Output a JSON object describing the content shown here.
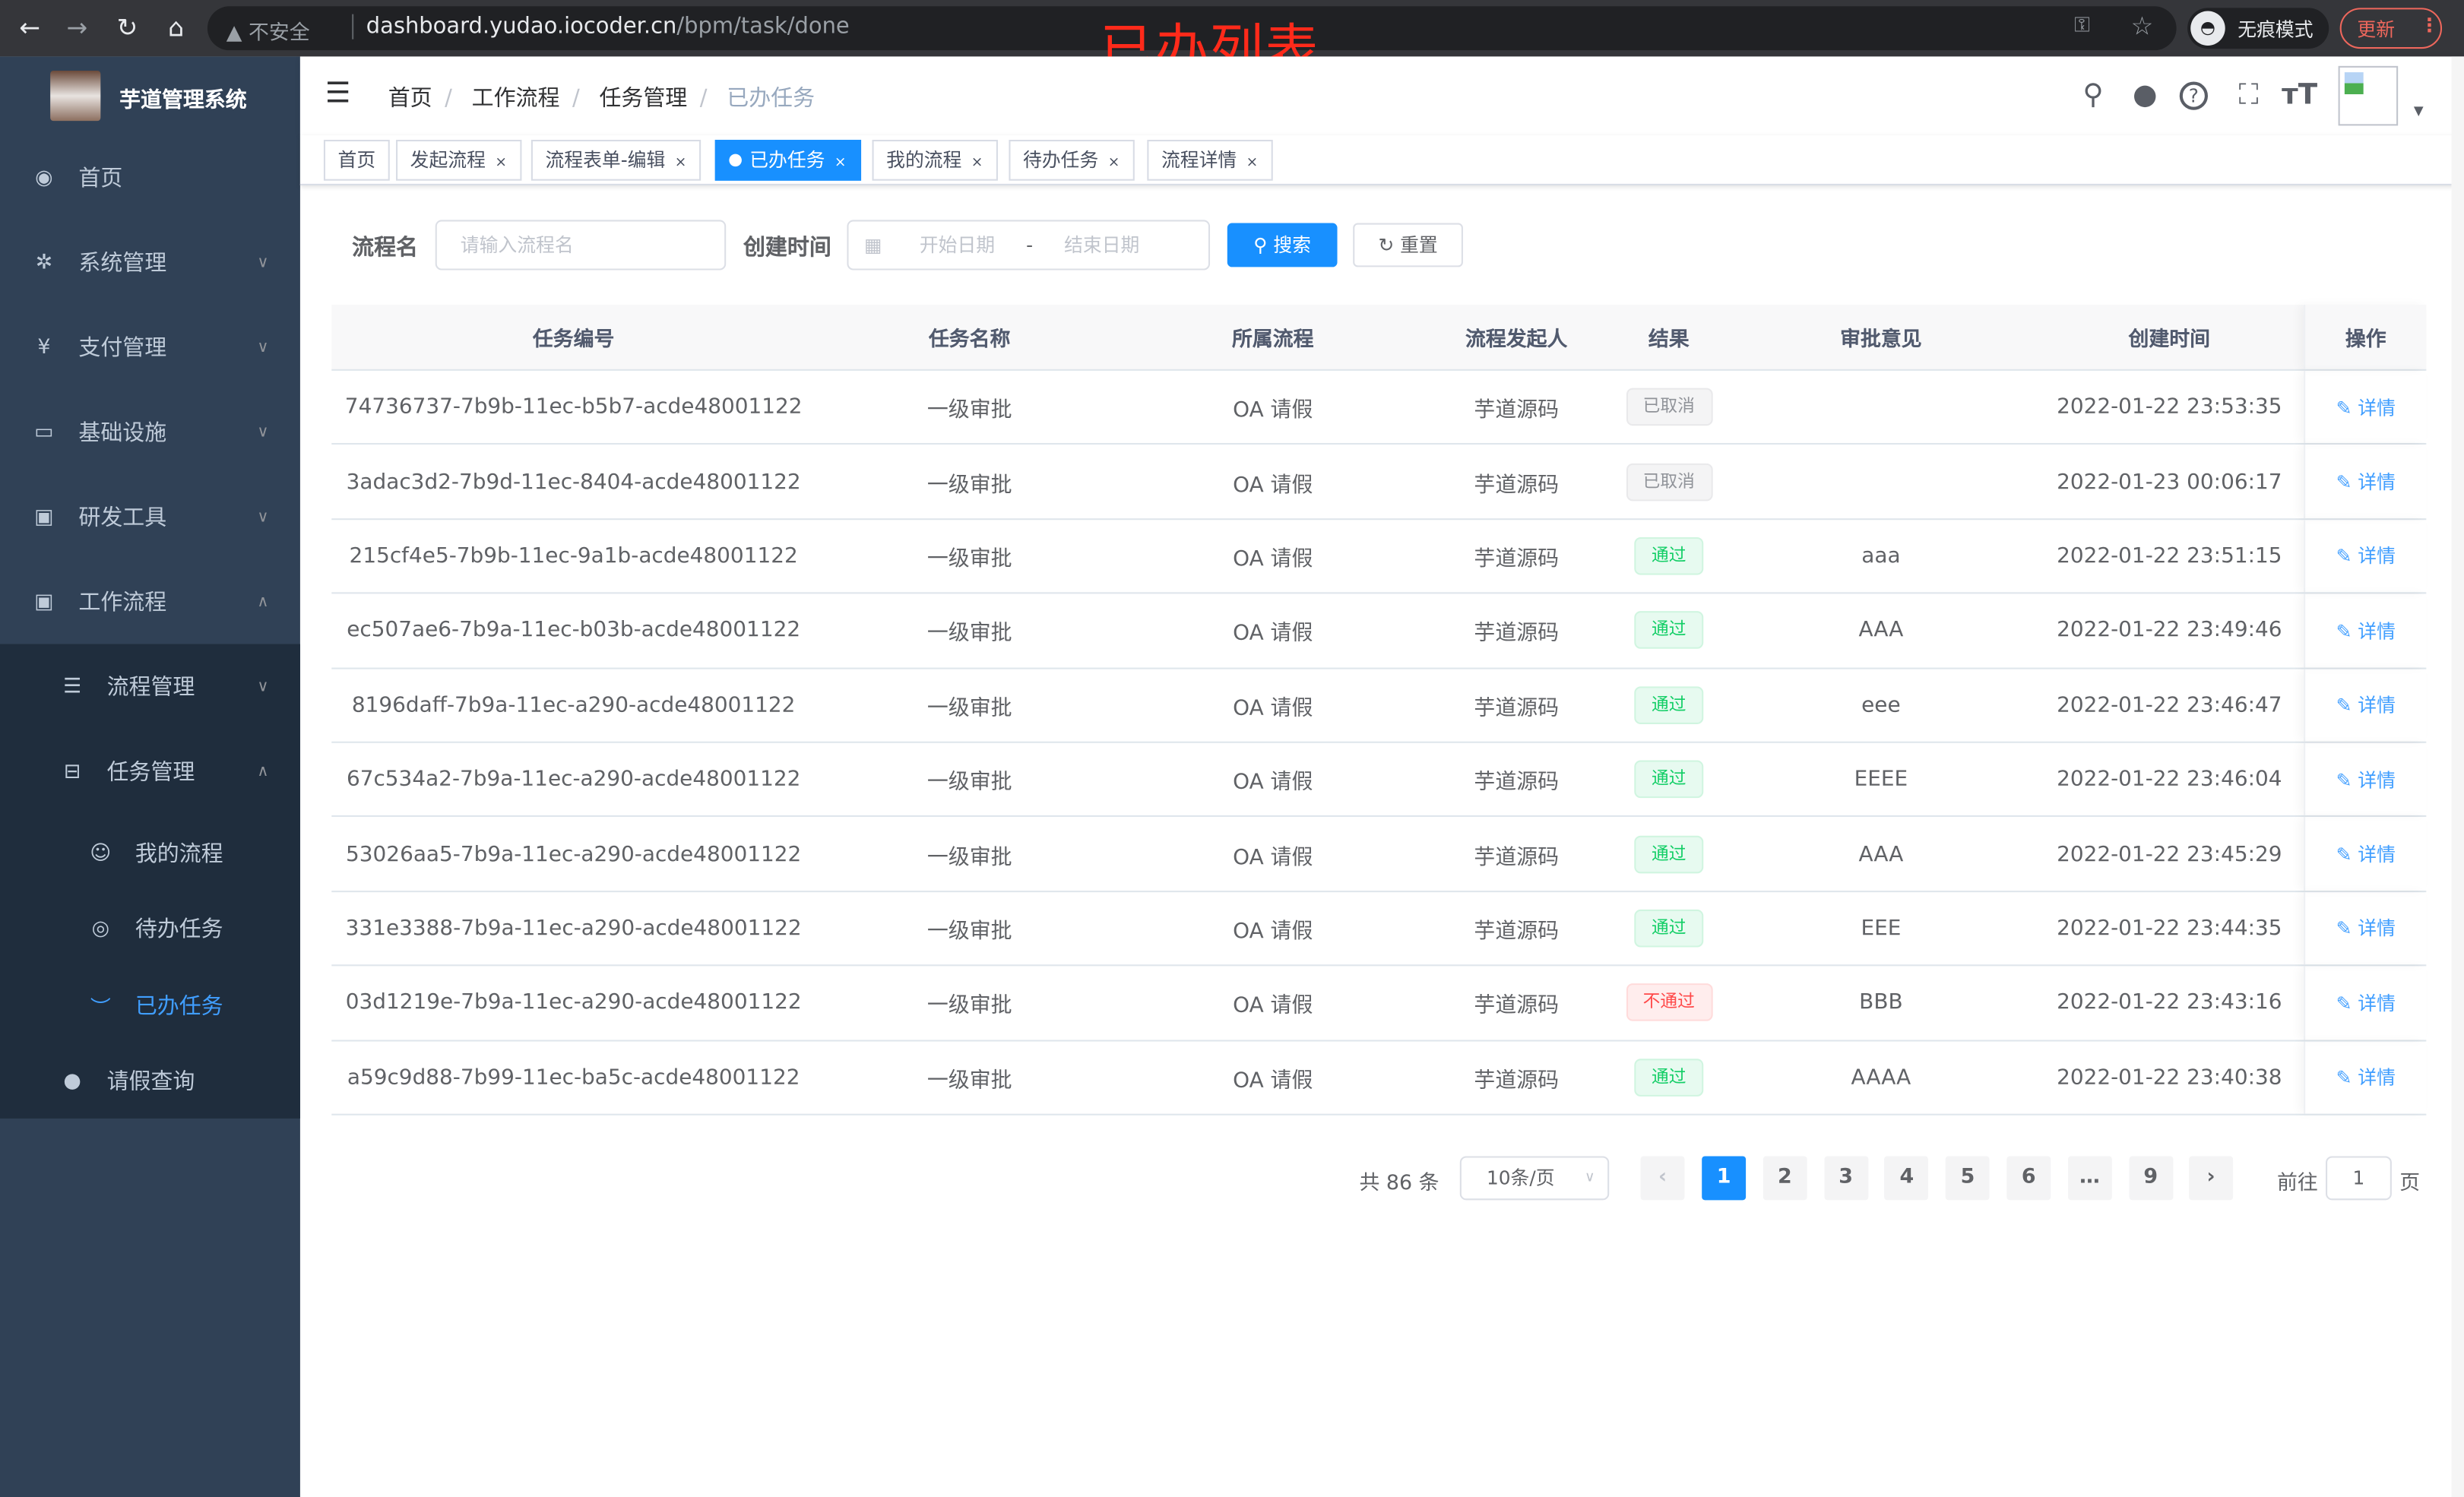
{
  "browser": {
    "insecure_label": "不安全",
    "url_host": "dashboard.yudao.iocoder.cn",
    "url_path": "/bpm/task/done",
    "incognito_label": "无痕模式",
    "update_label": "更新"
  },
  "annotation": "已办列表",
  "sidebar": {
    "title": "芋道管理系统",
    "items": [
      {
        "label": "首页",
        "icon": "dashboard-icon"
      },
      {
        "label": "系统管理",
        "icon": "gear-icon"
      },
      {
        "label": "支付管理",
        "icon": "yen-icon"
      },
      {
        "label": "基础设施",
        "icon": "monitor-icon"
      },
      {
        "label": "研发工具",
        "icon": "toolbox-icon"
      },
      {
        "label": "工作流程",
        "icon": "toolbox-icon"
      },
      {
        "label": "流程管理",
        "icon": "list-icon"
      },
      {
        "label": "任务管理",
        "icon": "tree-icon"
      },
      {
        "label": "我的流程",
        "icon": "people-icon"
      },
      {
        "label": "待办任务",
        "icon": "eye-icon"
      },
      {
        "label": "已办任务",
        "icon": "eye-closed-icon"
      },
      {
        "label": "请假查询",
        "icon": "user-icon"
      }
    ]
  },
  "breadcrumb": [
    "首页",
    "工作流程",
    "任务管理",
    "已办任务"
  ],
  "tags": [
    "首页",
    "发起流程",
    "流程表单-编辑",
    "已办任务",
    "我的流程",
    "待办任务",
    "流程详情"
  ],
  "form": {
    "name_label": "流程名",
    "name_placeholder": "请输入流程名",
    "time_label": "创建时间",
    "start_placeholder": "开始日期",
    "range_sep": "-",
    "end_placeholder": "结束日期",
    "search_label": "搜索",
    "reset_label": "重置"
  },
  "table": {
    "headers": [
      "任务编号",
      "任务名称",
      "所属流程",
      "流程发起人",
      "结果",
      "审批意见",
      "创建时间",
      "操作"
    ],
    "rows": [
      [
        "74736737-7b9b-11ec-b5b7-acde48001122",
        "一级审批",
        "OA 请假",
        "芋道源码",
        "已取消",
        "",
        "2022-01-22 23:53:35",
        "详情"
      ],
      [
        "3adac3d2-7b9d-11ec-8404-acde48001122",
        "一级审批",
        "OA 请假",
        "芋道源码",
        "已取消",
        "",
        "2022-01-23 00:06:17",
        "详情"
      ],
      [
        "215cf4e5-7b9b-11ec-9a1b-acde48001122",
        "一级审批",
        "OA 请假",
        "芋道源码",
        "通过",
        "aaa",
        "2022-01-22 23:51:15",
        "详情"
      ],
      [
        "ec507ae6-7b9a-11ec-b03b-acde48001122",
        "一级审批",
        "OA 请假",
        "芋道源码",
        "通过",
        "AAA",
        "2022-01-22 23:49:46",
        "详情"
      ],
      [
        "8196daff-7b9a-11ec-a290-acde48001122",
        "一级审批",
        "OA 请假",
        "芋道源码",
        "通过",
        "eee",
        "2022-01-22 23:46:47",
        "详情"
      ],
      [
        "67c534a2-7b9a-11ec-a290-acde48001122",
        "一级审批",
        "OA 请假",
        "芋道源码",
        "通过",
        "EEEE",
        "2022-01-22 23:46:04",
        "详情"
      ],
      [
        "53026aa5-7b9a-11ec-a290-acde48001122",
        "一级审批",
        "OA 请假",
        "芋道源码",
        "通过",
        "AAA",
        "2022-01-22 23:45:29",
        "详情"
      ],
      [
        "331e3388-7b9a-11ec-a290-acde48001122",
        "一级审批",
        "OA 请假",
        "芋道源码",
        "通过",
        "EEE",
        "2022-01-22 23:44:35",
        "详情"
      ],
      [
        "03d1219e-7b9a-11ec-a290-acde48001122",
        "一级审批",
        "OA 请假",
        "芋道源码",
        "不通过",
        "BBB",
        "2022-01-22 23:43:16",
        "详情"
      ],
      [
        "a59c9d88-7b99-11ec-ba5c-acde48001122",
        "一级审批",
        "OA 请假",
        "芋道源码",
        "通过",
        "AAAA",
        "2022-01-22 23:40:38",
        "详情"
      ]
    ]
  },
  "result_colors": {
    "已取消": [
      "#f4f4f5",
      "#e9e9eb",
      "#909399"
    ],
    "通过": [
      "#e7faf0",
      "#d0f5e0",
      "#13ce66"
    ],
    "不通过": [
      "#ffeded",
      "#ffdbdb",
      "#ff4949"
    ]
  },
  "pagination": {
    "total": "共 86 条",
    "page_size": "10条/页",
    "pages": [
      "1",
      "2",
      "3",
      "4",
      "5",
      "6",
      "…",
      "9"
    ],
    "current": "1",
    "goto_label": "前往",
    "goto_value": "1",
    "goto_suffix": "页"
  },
  "colors": {
    "primary": "#1890ff",
    "sidebar": "#304156"
  }
}
